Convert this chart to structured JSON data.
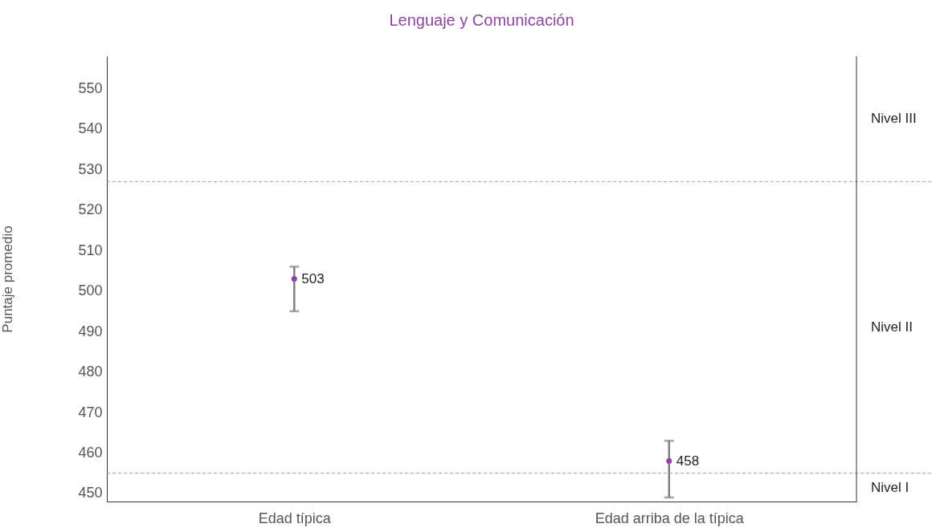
{
  "chart_data": {
    "type": "scatter",
    "title": "Lenguaje y Comunicación",
    "ylabel": "Puntaje promedio",
    "categories": [
      "Edad típica",
      "Edad arriba de la típica"
    ],
    "values": [
      503,
      458
    ],
    "color": "#8e44a0",
    "errors": [
      [
        495,
        506
      ],
      [
        449,
        463
      ]
    ],
    "ylim": [
      448,
      558
    ],
    "yticks": [
      450,
      460,
      470,
      480,
      490,
      500,
      510,
      520,
      530,
      540,
      550
    ],
    "marker": "circle",
    "data_labels": true,
    "ref_lines": [
      {
        "axis": "y",
        "value": 527,
        "color": "#b88fc6",
        "line_style": "dashed"
      },
      {
        "axis": "y",
        "value": 455,
        "color": "#b88fc6",
        "line_style": "dashed"
      }
    ],
    "annotations": [
      "Nivel III",
      "Nivel II",
      "Nivel I"
    ]
  }
}
